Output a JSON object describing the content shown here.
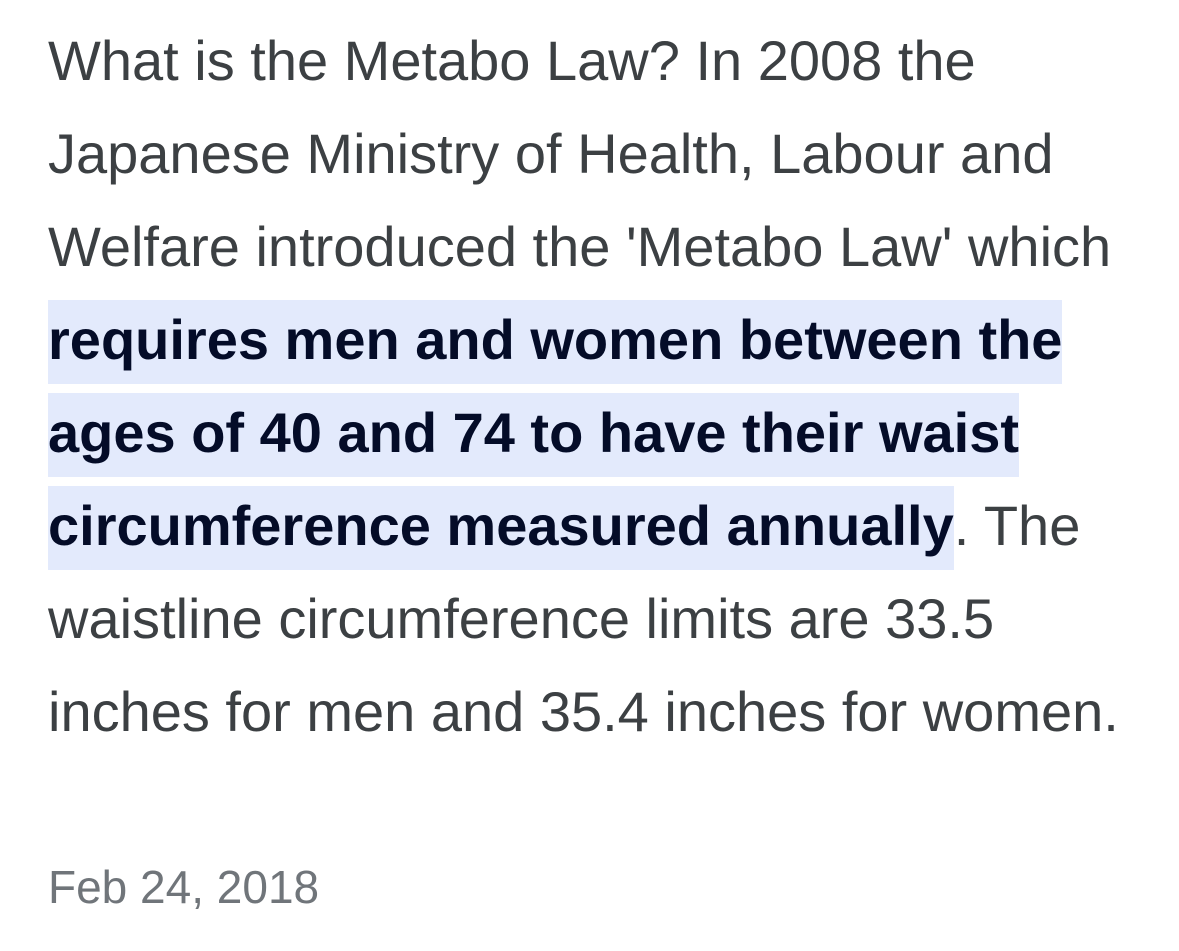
{
  "snippet": {
    "text_before": "What is the Metabo Law? In 2008 the Japanese Ministry of Health, Labour and Welfare introduced the 'Metabo Law' which ",
    "highlighted": "requires men and women between the ages of 40 and 74 to have their waist circumference measured annually",
    "text_after": ". The waistline circumference limits are 33.5 inches for men and 35.4 inches for women.",
    "date": "Feb 24, 2018"
  },
  "colors": {
    "body_text": "#3c4043",
    "highlight_background": "#e3eafc",
    "highlight_text": "#040c28",
    "date_text": "#70757a"
  }
}
